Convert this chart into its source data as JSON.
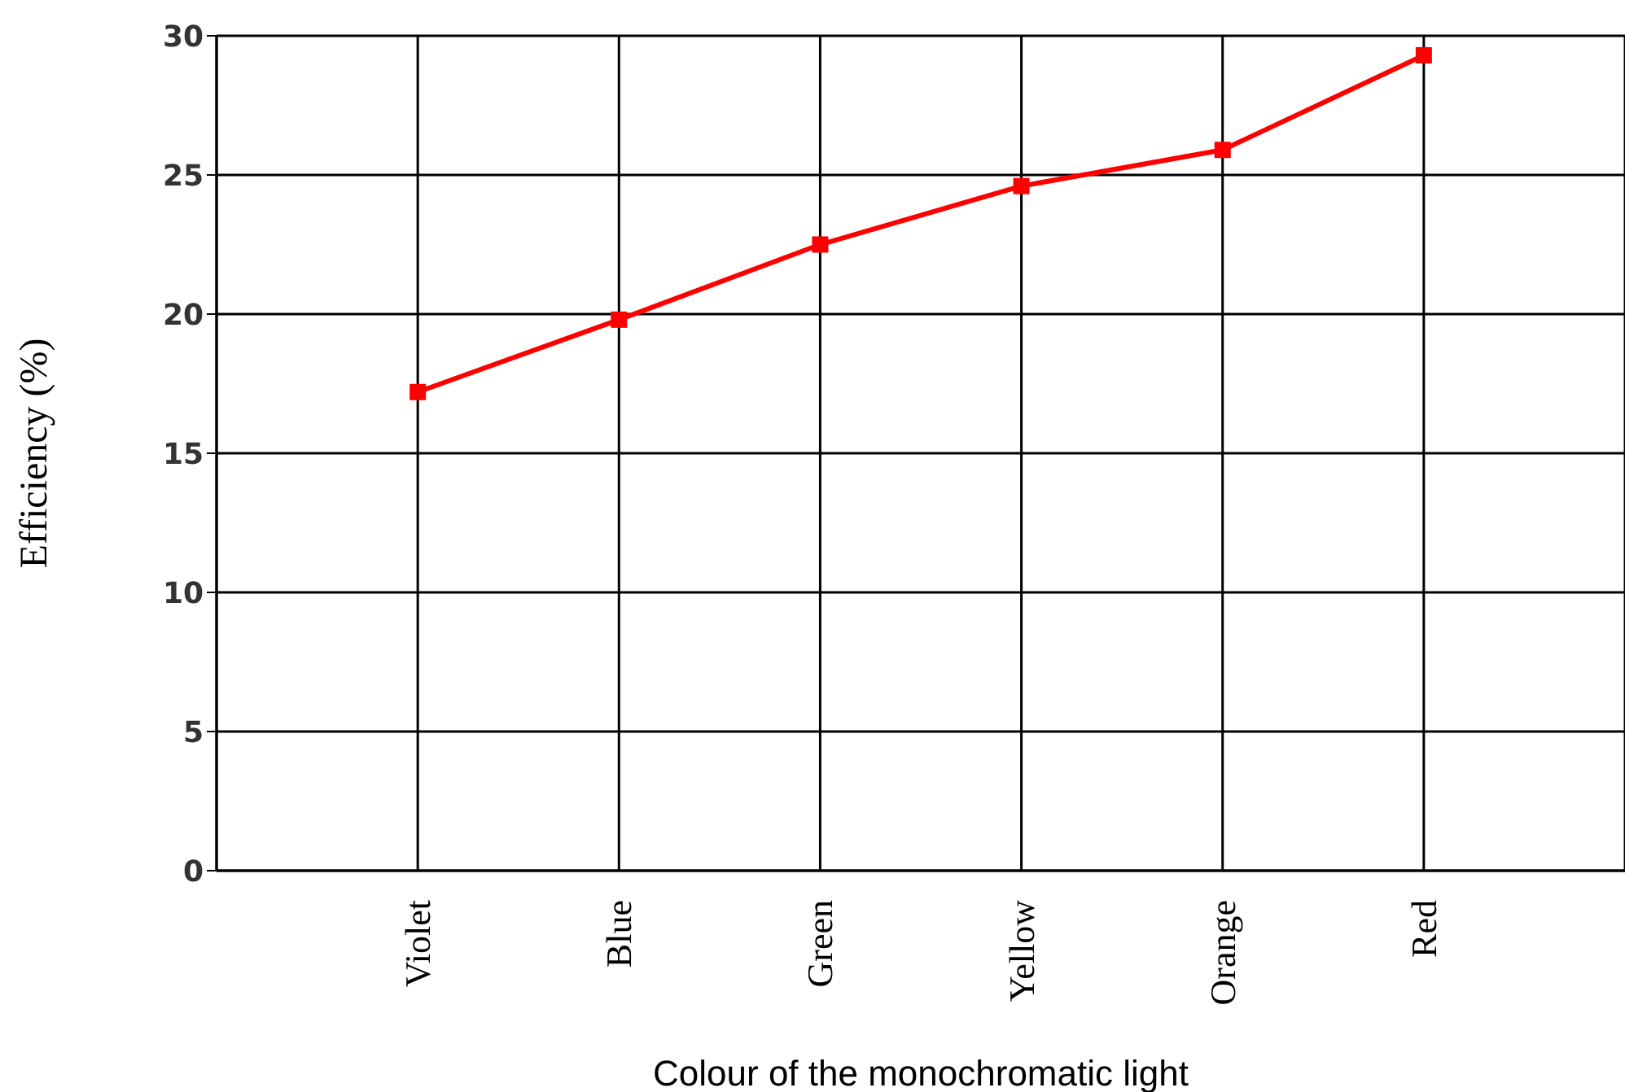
{
  "chart_data": {
    "type": "line",
    "xlabel": "Colour of the monochromatic light",
    "ylabel": "Efficiency (%)",
    "categories": [
      "Violet",
      "Blue",
      "Green",
      "Yellow",
      "Orange",
      "Red"
    ],
    "series": [
      {
        "color": "#ff0000",
        "values": [
          17.2,
          19.8,
          22.5,
          24.6,
          25.9,
          29.3
        ]
      }
    ],
    "ylim": [
      0,
      30
    ],
    "yticks": [
      0,
      5,
      10,
      15,
      20,
      25,
      30
    ],
    "grid": true,
    "marker": "square",
    "line_style": "solid"
  }
}
